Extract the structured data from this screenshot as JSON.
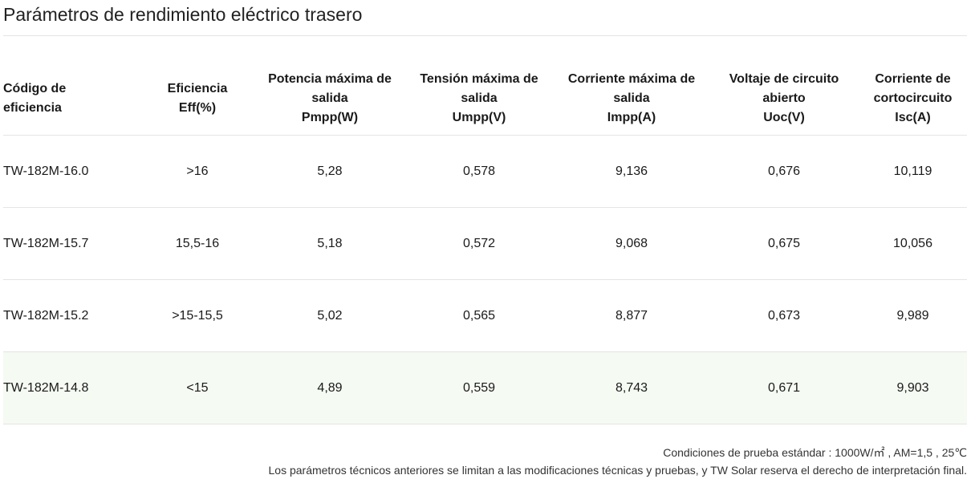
{
  "title": "Parámetros de rendimiento eléctrico trasero",
  "table": {
    "headers": [
      [
        "Código de",
        "eficiencia"
      ],
      [
        "Eficiencia",
        "Eff(%)"
      ],
      [
        "Potencia máxima de",
        "salida",
        "Pmpp(W)"
      ],
      [
        "Tensión máxima de",
        "salida",
        "Umpp(V)"
      ],
      [
        "Corriente máxima de",
        "salida",
        "Impp(A)"
      ],
      [
        "Voltaje de circuito",
        "abierto",
        "Uoc(V)"
      ],
      [
        "Corriente de",
        "cortocircuito",
        "Isc(A)"
      ]
    ],
    "rows": [
      [
        "TW-182M-16.0",
        ">16",
        "5,28",
        "0,578",
        "9,136",
        "0,676",
        "10,119"
      ],
      [
        "TW-182M-15.7",
        "15,5-16",
        "5,18",
        "0,572",
        "9,068",
        "0,675",
        "10,056"
      ],
      [
        "TW-182M-15.2",
        ">15-15,5",
        "5,02",
        "0,565",
        "8,877",
        "0,673",
        "9,989"
      ],
      [
        "TW-182M-14.8",
        "<15",
        "4,89",
        "0,559",
        "8,743",
        "0,671",
        "9,903"
      ]
    ]
  },
  "notes": {
    "conditions": "Condiciones de prueba estándar : 1000W/㎡ , AM=1,5 , 25℃",
    "disclaimer": "Los parámetros técnicos anteriores se limitan a las modificaciones técnicas y pruebas, y TW Solar reserva el derecho de interpretación final."
  }
}
